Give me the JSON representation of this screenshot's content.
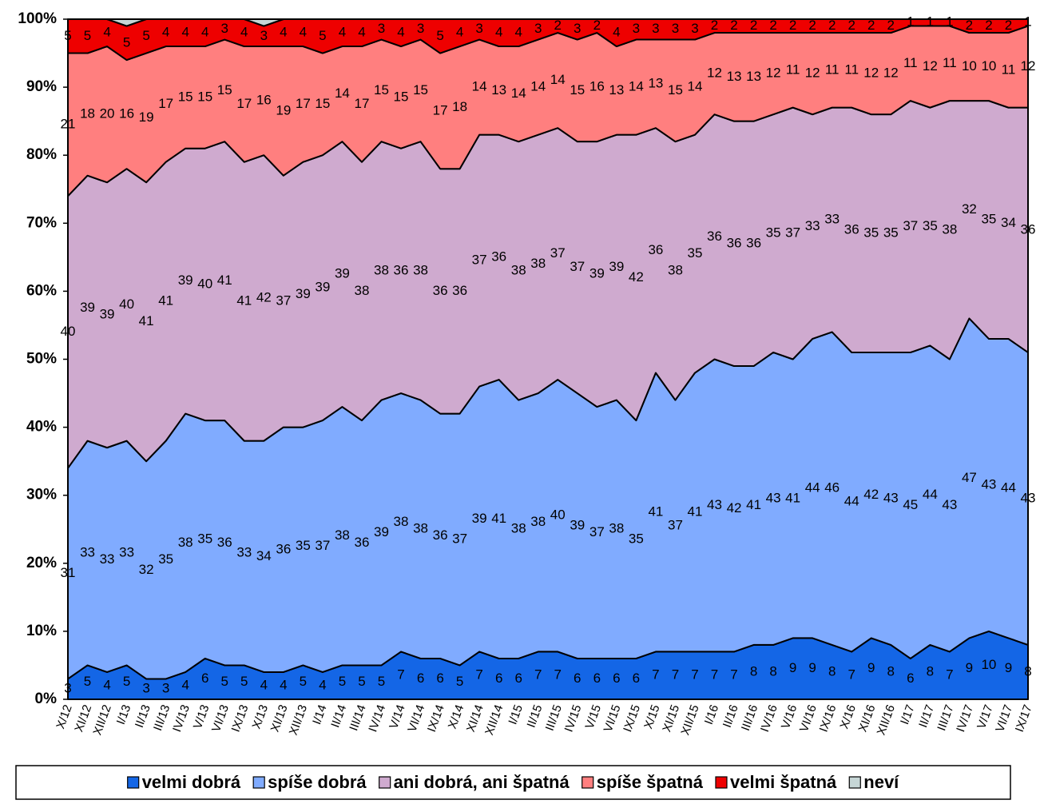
{
  "chart_data": {
    "type": "stacked_area",
    "categories": [
      "X/12",
      "XI/12",
      "XII/12",
      "I/13",
      "II/13",
      "III/13",
      "IV/13",
      "V/13",
      "VI/13",
      "IX/13",
      "X/13",
      "XI/13",
      "XII/13",
      "I/14",
      "II/14",
      "III/14",
      "IV/14",
      "V/14",
      "VI/14",
      "IX/14",
      "X/14",
      "XI/14",
      "XII/14",
      "I/15",
      "II/15",
      "III/15",
      "IV/15",
      "V/15",
      "VI/15",
      "IX/15",
      "X/15",
      "XI/15",
      "XII/15",
      "I/16",
      "II/16",
      "III/16",
      "IV/16",
      "V/16",
      "VI/16",
      "IX/16",
      "X/16",
      "XI/16",
      "XII/16",
      "I/17",
      "II/17",
      "III/17",
      "IV/17",
      "V/17",
      "VI/17",
      "IX/17"
    ],
    "series": [
      {
        "name": "velmi dobrá",
        "color": "#1466e6",
        "data_labels": true,
        "values": [
          3,
          5,
          4,
          5,
          3,
          3,
          4,
          6,
          5,
          5,
          4,
          4,
          5,
          4,
          5,
          5,
          5,
          7,
          6,
          6,
          5,
          7,
          6,
          6,
          7,
          7,
          6,
          6,
          6,
          6,
          7,
          7,
          7,
          7,
          7,
          8,
          8,
          9,
          9,
          8,
          7,
          9,
          8,
          6,
          8,
          7,
          9,
          10,
          9,
          8
        ]
      },
      {
        "name": "spíše dobrá",
        "color": "#80abff",
        "data_labels": true,
        "values": [
          31,
          33,
          33,
          33,
          32,
          35,
          38,
          35,
          36,
          33,
          34,
          36,
          35,
          37,
          38,
          36,
          39,
          38,
          38,
          36,
          37,
          39,
          41,
          38,
          38,
          40,
          39,
          37,
          38,
          35,
          41,
          37,
          41,
          43,
          42,
          41,
          43,
          41,
          44,
          46,
          44,
          42,
          43,
          45,
          44,
          43,
          47,
          43,
          44,
          43
        ]
      },
      {
        "name": "ani dobrá, ani špatná",
        "color": "#cfaacf",
        "data_labels": true,
        "values": [
          40,
          39,
          39,
          40,
          41,
          41,
          39,
          40,
          41,
          41,
          42,
          37,
          39,
          39,
          39,
          38,
          38,
          36,
          38,
          36,
          36,
          37,
          36,
          38,
          38,
          37,
          37,
          39,
          39,
          42,
          36,
          38,
          35,
          36,
          36,
          36,
          35,
          37,
          33,
          33,
          36,
          35,
          35,
          37,
          35,
          38,
          32,
          35,
          34,
          36
        ]
      },
      {
        "name": "spíše špatná",
        "color": "#ff7f7f",
        "data_labels": true,
        "values": [
          21,
          18,
          20,
          16,
          19,
          17,
          15,
          15,
          15,
          17,
          16,
          19,
          17,
          15,
          14,
          17,
          15,
          15,
          15,
          17,
          18,
          14,
          13,
          14,
          14,
          14,
          15,
          16,
          13,
          14,
          13,
          15,
          14,
          12,
          13,
          13,
          12,
          11,
          12,
          11,
          11,
          12,
          12,
          11,
          12,
          11,
          10,
          10,
          11,
          12
        ]
      },
      {
        "name": "velmi špatná",
        "color": "#ee0000",
        "data_labels": true,
        "values": [
          5,
          5,
          4,
          5,
          5,
          4,
          4,
          4,
          3,
          4,
          3,
          4,
          4,
          5,
          4,
          4,
          3,
          4,
          3,
          5,
          4,
          3,
          4,
          4,
          3,
          2,
          3,
          2,
          4,
          3,
          3,
          3,
          3,
          2,
          2,
          2,
          2,
          2,
          2,
          2,
          2,
          2,
          2,
          1,
          1,
          1,
          2,
          2,
          2,
          1
        ]
      },
      {
        "name": "neví",
        "color": "#c6d6d6",
        "data_labels": false,
        "values": [
          0,
          0,
          0,
          1,
          0,
          0,
          0,
          0,
          0,
          0,
          1,
          0,
          0,
          0,
          0,
          0,
          0,
          0,
          0,
          0,
          0,
          0,
          0,
          0,
          0,
          0,
          0,
          0,
          0,
          0,
          0,
          0,
          0,
          0,
          0,
          0,
          0,
          0,
          0,
          0,
          0,
          0,
          0,
          0,
          0,
          0,
          0,
          0,
          0,
          0
        ]
      }
    ],
    "ylim": [
      0,
      100
    ],
    "yticks": [
      {
        "value": 0,
        "label": "0%"
      },
      {
        "value": 10,
        "label": "10%"
      },
      {
        "value": 20,
        "label": "20%"
      },
      {
        "value": 30,
        "label": "30%"
      },
      {
        "value": 40,
        "label": "40%"
      },
      {
        "value": 50,
        "label": "50%"
      },
      {
        "value": 60,
        "label": "60%"
      },
      {
        "value": 70,
        "label": "70%"
      },
      {
        "value": 80,
        "label": "80%"
      },
      {
        "value": 90,
        "label": "90%"
      },
      {
        "value": 100,
        "label": "100%"
      }
    ],
    "legend": "bottom"
  }
}
